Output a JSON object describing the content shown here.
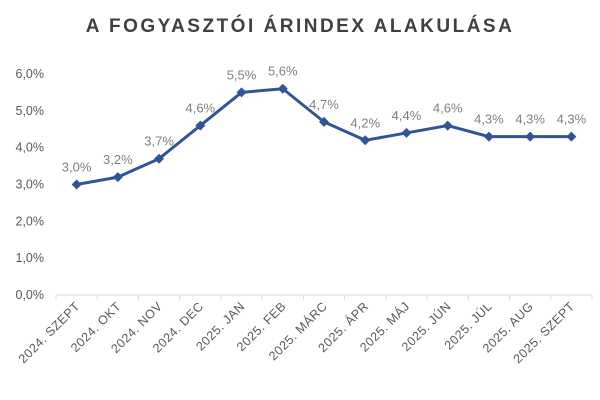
{
  "chart_data": {
    "type": "line",
    "title": "A FOGYASZTÓI ÁRINDEX ALAKULÁSA",
    "categories": [
      "2024. SZEPT",
      "2024. OKT",
      "2024. NOV",
      "2024. DEC",
      "2025. JAN",
      "2025. FEB",
      "2025. MÁRC",
      "2025. ÁPR",
      "2025. MÁJ",
      "2025. JÚN",
      "2025. JÚL",
      "2025. AUG",
      "2025. SZEPT"
    ],
    "series": [
      {
        "values": [
          3.0,
          3.2,
          3.7,
          4.6,
          5.5,
          5.6,
          4.7,
          4.2,
          4.4,
          4.6,
          4.3,
          4.3,
          4.3
        ],
        "data_labels": [
          "3,0%",
          "3,2%",
          "3,7%",
          "4,6%",
          "5,5%",
          "5,6%",
          "4,7%",
          "4,2%",
          "4,4%",
          "4,6%",
          "4,3%",
          "4,3%",
          "4,3%"
        ]
      }
    ],
    "y_ticks": [
      "0,0%",
      "1,0%",
      "2,0%",
      "3,0%",
      "4,0%",
      "5,0%",
      "6,0%"
    ],
    "ylim": [
      0,
      6
    ],
    "xlabel": "",
    "ylabel": "",
    "grid": false,
    "legend": "none",
    "colors": {
      "line": "#2f5597",
      "marker": "#2f5597",
      "axis": "#d9d9d9",
      "tick_text": "#595959",
      "label_text": "#7f7f7f",
      "title_text": "#404040"
    }
  }
}
